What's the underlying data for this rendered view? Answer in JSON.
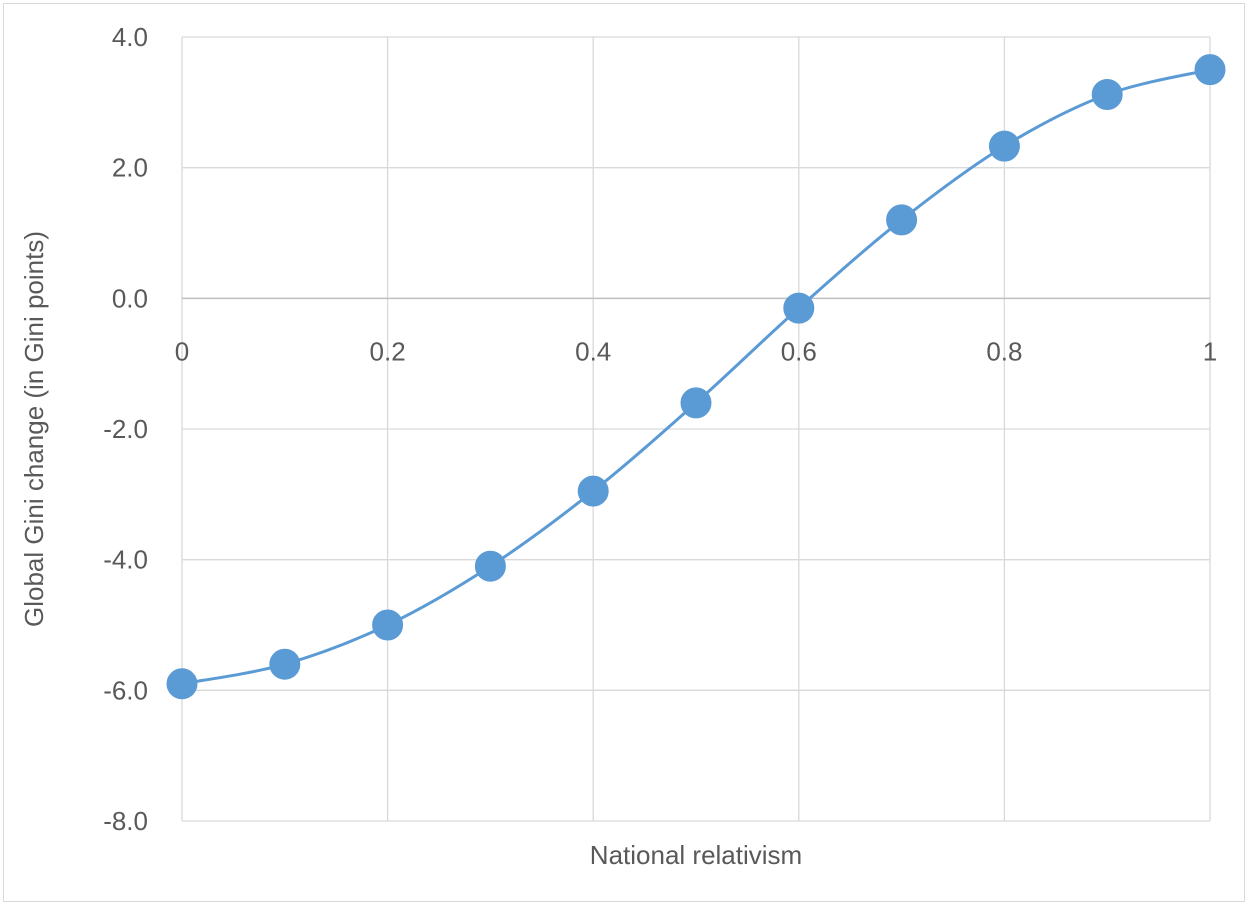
{
  "chart_data": {
    "type": "line",
    "title": "",
    "xlabel": "National relativism",
    "ylabel": "Global Gini change (in Gini points)",
    "x": [
      0,
      0.1,
      0.2,
      0.3,
      0.4,
      0.5,
      0.6,
      0.7,
      0.8,
      0.9,
      1
    ],
    "series": [
      {
        "values": [
          -5.9,
          -5.6,
          -5.0,
          -4.1,
          -2.95,
          -1.6,
          -0.15,
          1.2,
          2.33,
          3.12,
          3.5
        ]
      }
    ],
    "xlim": [
      0,
      1
    ],
    "ylim": [
      -8,
      4
    ],
    "x_ticks": [
      0,
      0.2,
      0.4,
      0.6,
      0.8,
      1
    ],
    "x_tick_labels": [
      "0",
      "0.2",
      "0.4",
      "0.6",
      "0.8",
      "1"
    ],
    "y_ticks": [
      -8,
      -6,
      -4,
      -2,
      0,
      2,
      4
    ],
    "y_tick_labels": [
      "-8.0",
      "-6.0",
      "-4.0",
      "-2.0",
      "0.0",
      "2.0",
      "4.0"
    ],
    "grid": true,
    "x_axis_crosses_at_y": 0,
    "legend": "none",
    "colors": {
      "series": "#5b9bd5",
      "grid": "#d9d9d9",
      "axis": "#bfbfbf",
      "text": "#595959"
    }
  }
}
